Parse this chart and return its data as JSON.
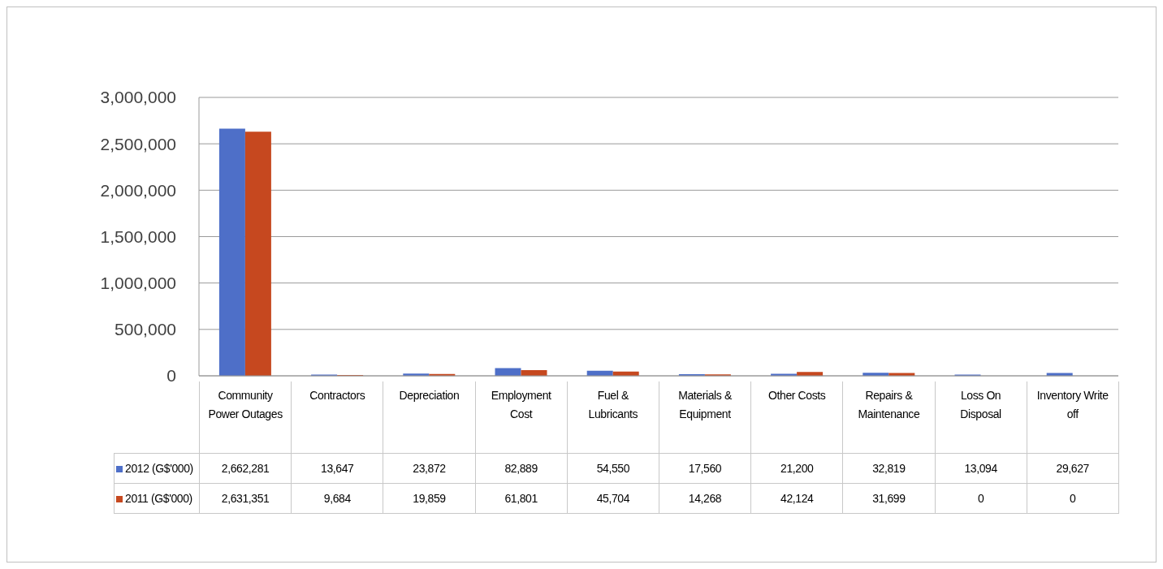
{
  "chart_data": {
    "type": "bar",
    "categories": [
      "Community Power Outages",
      "Contractors",
      "Depreciation",
      "Employment Cost",
      "Fuel & Lubricants",
      "Materials & Equipment",
      "Other Costs",
      "Repairs & Maintenance",
      "Loss On Disposal",
      "Inventory Write off"
    ],
    "series": [
      {
        "name": "2012 (G$'000)",
        "color": "#4e6fc8",
        "values": [
          2662281,
          13647,
          23872,
          82889,
          54550,
          17560,
          21200,
          32819,
          13094,
          29627
        ],
        "value_labels": [
          "2,662,281",
          "13,647",
          "23,872",
          "82,889",
          "54,550",
          "17,560",
          "21,200",
          "32,819",
          "13,094",
          "29,627"
        ]
      },
      {
        "name": "2011 (G$'000)",
        "color": "#c6481f",
        "values": [
          2631351,
          9684,
          19859,
          61801,
          45704,
          14268,
          42124,
          31699,
          0,
          0
        ],
        "value_labels": [
          "2,631,351",
          "9,684",
          "19,859",
          "61,801",
          "45,704",
          "14,268",
          "42,124",
          "31,699",
          "0",
          "0"
        ]
      }
    ],
    "ylim": [
      0,
      3000000
    ],
    "yticks": [
      0,
      {
        "value": 500000,
        "label": "500,000"
      },
      {
        "value": 1000000,
        "label": "1,000,000"
      },
      {
        "value": 1500000,
        "label": "1,500,000"
      },
      {
        "value": 2000000,
        "label": "2,000,000"
      },
      {
        "value": 2500000,
        "label": "2,500,000"
      },
      {
        "value": 3000000,
        "label": "3,000,000"
      }
    ],
    "grid": "y",
    "legend": "bottom left"
  }
}
